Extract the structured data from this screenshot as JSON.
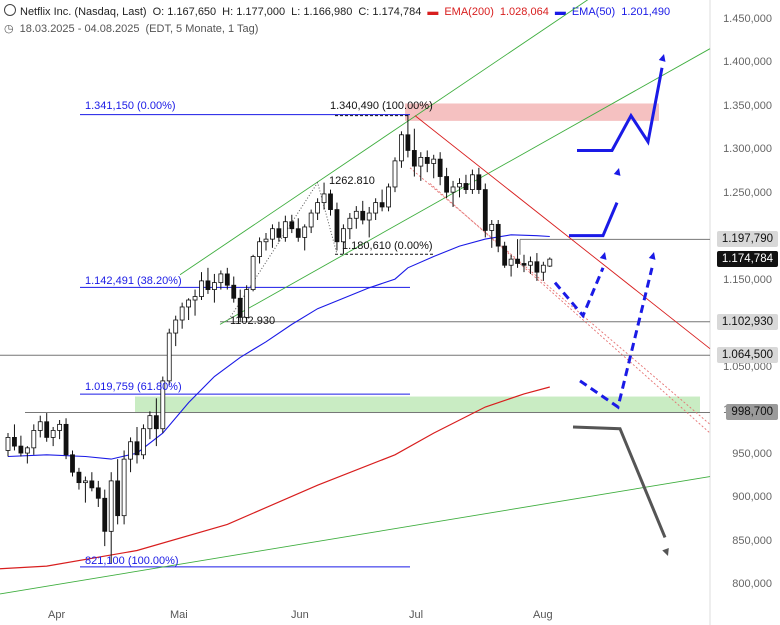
{
  "header": {
    "title": "Netflix Inc. (Nasdaq, Last)",
    "open": "O: 1.167,650",
    "high": "H: 1.177,000",
    "low": "L: 1.166,980",
    "close": "C: 1.174,784",
    "ema200_label": "EMA(200)",
    "ema200_value": "1.028,064",
    "ema50_label": "EMA(50)",
    "ema50_value": "1.201,490",
    "range": "18.03.2025 - 04.08.2025",
    "meta": "(EDT, 5 Monate, 1 Tag)"
  },
  "colors": {
    "ema200": "#d81e1e",
    "ema50": "#1a1ae6",
    "channel": "#3fae3f",
    "resistance_zone": "#f3b6b6",
    "support_zone": "#bfe9b8",
    "projection_up": "#1a1ae6",
    "projection_down": "#555555"
  },
  "y_axis": {
    "ticks": [
      "1.450,000",
      "1.400,000",
      "1.350,000",
      "1.300,000",
      "1.250,000",
      "1.200,000",
      "1.150,000",
      "1.100,000",
      "1.050,000",
      "1.000,000",
      "950,000",
      "900,000",
      "850,000",
      "800,000"
    ],
    "tags": [
      {
        "label": "1.197,790",
        "style": "light"
      },
      {
        "label": "1.174,784",
        "style": "dark"
      },
      {
        "label": "1.102,930",
        "style": "light"
      },
      {
        "label": "1.064,500",
        "style": "light"
      },
      {
        "label": "998,700",
        "style": "grey"
      }
    ]
  },
  "x_axis": {
    "ticks": [
      "Apr",
      "Mai",
      "Jun",
      "Jul",
      "Aug"
    ]
  },
  "annotations": {
    "fib_top": "1.341,150 (0.00%)",
    "peak": "1.340,490 (100.00%)",
    "high_mid": "1262.810",
    "fib_mid": "1.180,610 (0.00%)",
    "fib_382": "1.142,491 (38.20%)",
    "low_mid": "1102.930",
    "fib_618": "1.019,759 (61.80%)",
    "fib_low": "821,100 (100.00%)"
  },
  "chart_data": {
    "type": "candlestick",
    "y_range": [
      790,
      1465
    ],
    "candles": [
      [
        955,
        975,
        948,
        970
      ],
      [
        970,
        985,
        955,
        960
      ],
      [
        960,
        972,
        948,
        952
      ],
      [
        952,
        960,
        940,
        958
      ],
      [
        958,
        985,
        950,
        978
      ],
      [
        978,
        995,
        970,
        988
      ],
      [
        988,
        998,
        965,
        970
      ],
      [
        970,
        982,
        960,
        978
      ],
      [
        978,
        990,
        968,
        985
      ],
      [
        985,
        992,
        945,
        950
      ],
      [
        950,
        955,
        925,
        930
      ],
      [
        930,
        935,
        910,
        918
      ],
      [
        918,
        925,
        895,
        920
      ],
      [
        920,
        930,
        908,
        912
      ],
      [
        912,
        920,
        890,
        900
      ],
      [
        900,
        910,
        845,
        862
      ],
      [
        862,
        930,
        825,
        920
      ],
      [
        920,
        945,
        870,
        880
      ],
      [
        880,
        955,
        870,
        945
      ],
      [
        945,
        970,
        930,
        965
      ],
      [
        965,
        982,
        940,
        950
      ],
      [
        950,
        985,
        945,
        980
      ],
      [
        980,
        1000,
        968,
        995
      ],
      [
        995,
        1015,
        960,
        980
      ],
      [
        980,
        1040,
        975,
        1035
      ],
      [
        1035,
        1095,
        1030,
        1090
      ],
      [
        1090,
        1110,
        1075,
        1105
      ],
      [
        1105,
        1125,
        1095,
        1120
      ],
      [
        1120,
        1130,
        1105,
        1128
      ],
      [
        1128,
        1140,
        1110,
        1132
      ],
      [
        1132,
        1160,
        1128,
        1150
      ],
      [
        1150,
        1165,
        1135,
        1140
      ],
      [
        1140,
        1158,
        1125,
        1148
      ],
      [
        1148,
        1162,
        1140,
        1158
      ],
      [
        1158,
        1165,
        1140,
        1145
      ],
      [
        1145,
        1155,
        1125,
        1130
      ],
      [
        1130,
        1140,
        1103,
        1108
      ],
      [
        1108,
        1145,
        1103,
        1140
      ],
      [
        1140,
        1180,
        1138,
        1178
      ],
      [
        1178,
        1200,
        1170,
        1195
      ],
      [
        1195,
        1205,
        1185,
        1198
      ],
      [
        1198,
        1215,
        1188,
        1210
      ],
      [
        1210,
        1218,
        1195,
        1200
      ],
      [
        1200,
        1225,
        1195,
        1218
      ],
      [
        1218,
        1226,
        1205,
        1210
      ],
      [
        1210,
        1222,
        1195,
        1200
      ],
      [
        1200,
        1215,
        1185,
        1212
      ],
      [
        1212,
        1232,
        1205,
        1228
      ],
      [
        1228,
        1245,
        1220,
        1240
      ],
      [
        1240,
        1263,
        1232,
        1250
      ],
      [
        1250,
        1255,
        1225,
        1232
      ],
      [
        1232,
        1240,
        1185,
        1195
      ],
      [
        1195,
        1215,
        1181,
        1210
      ],
      [
        1210,
        1228,
        1198,
        1222
      ],
      [
        1222,
        1236,
        1210,
        1230
      ],
      [
        1230,
        1242,
        1215,
        1220
      ],
      [
        1220,
        1235,
        1200,
        1228
      ],
      [
        1228,
        1245,
        1220,
        1240
      ],
      [
        1240,
        1255,
        1230,
        1235
      ],
      [
        1235,
        1262,
        1230,
        1258
      ],
      [
        1258,
        1292,
        1252,
        1288
      ],
      [
        1288,
        1322,
        1280,
        1318
      ],
      [
        1318,
        1341,
        1292,
        1300
      ],
      [
        1300,
        1325,
        1270,
        1282
      ],
      [
        1282,
        1298,
        1265,
        1292
      ],
      [
        1292,
        1300,
        1275,
        1285
      ],
      [
        1285,
        1295,
        1268,
        1290
      ],
      [
        1290,
        1298,
        1260,
        1270
      ],
      [
        1270,
        1280,
        1245,
        1252
      ],
      [
        1252,
        1265,
        1235,
        1258
      ],
      [
        1258,
        1268,
        1246,
        1262
      ],
      [
        1262,
        1272,
        1250,
        1255
      ],
      [
        1255,
        1278,
        1250,
        1272
      ],
      [
        1272,
        1280,
        1250,
        1255
      ],
      [
        1255,
        1262,
        1200,
        1208
      ],
      [
        1208,
        1220,
        1188,
        1215
      ],
      [
        1215,
        1220,
        1183,
        1190
      ],
      [
        1190,
        1195,
        1165,
        1168
      ],
      [
        1168,
        1180,
        1155,
        1175
      ],
      [
        1175,
        1198,
        1165,
        1170
      ],
      [
        1170,
        1180,
        1160,
        1168
      ],
      [
        1168,
        1178,
        1158,
        1172
      ],
      [
        1172,
        1182,
        1150,
        1160
      ],
      [
        1160,
        1172,
        1150,
        1168
      ],
      [
        1167,
        1177,
        1166,
        1175
      ]
    ],
    "ema50": [
      [
        0,
        948
      ],
      [
        6,
        950
      ],
      [
        12,
        948
      ],
      [
        16,
        945
      ],
      [
        20,
        952
      ],
      [
        24,
        975
      ],
      [
        28,
        1010
      ],
      [
        32,
        1040
      ],
      [
        36,
        1062
      ],
      [
        40,
        1080
      ],
      [
        44,
        1100
      ],
      [
        48,
        1118
      ],
      [
        52,
        1130
      ],
      [
        56,
        1142
      ],
      [
        60,
        1152
      ],
      [
        62,
        1165
      ],
      [
        66,
        1178
      ],
      [
        70,
        1190
      ],
      [
        74,
        1198
      ],
      [
        78,
        1203
      ],
      [
        82,
        1202
      ],
      [
        84,
        1201
      ]
    ],
    "ema200": [
      [
        -6,
        817
      ],
      [
        6,
        822
      ],
      [
        20,
        840
      ],
      [
        34,
        870
      ],
      [
        48,
        915
      ],
      [
        60,
        950
      ],
      [
        66,
        975
      ],
      [
        74,
        1005
      ],
      [
        80,
        1020
      ],
      [
        84,
        1028
      ]
    ],
    "levels": [
      1341.15,
      1180.61,
      1142.49,
      1102.93,
      1064.5,
      1019.76,
      998.7,
      821.1,
      1197.79
    ]
  }
}
